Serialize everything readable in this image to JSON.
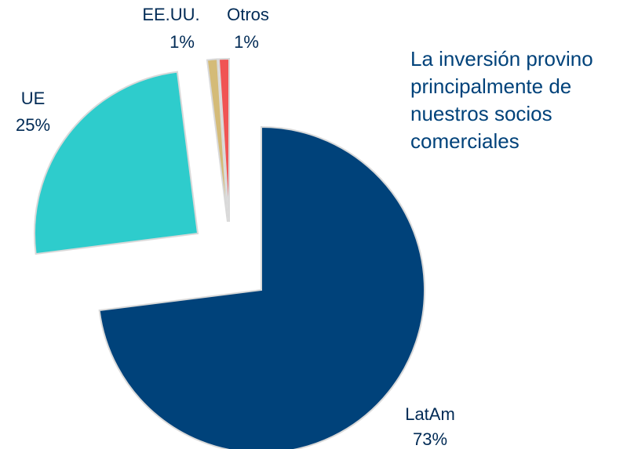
{
  "chart_data": {
    "type": "pie",
    "categories": [
      "LatAm",
      "UE",
      "EE.UU.",
      "Otros"
    ],
    "values": [
      73,
      25,
      1,
      1
    ],
    "value_labels": [
      "73%",
      "25%",
      "1%",
      "1%"
    ],
    "colors": [
      "#00427a",
      "#2ecccc",
      "#d4bb78",
      "#f05454"
    ],
    "annotation": "La inversión provino principalmente de nuestros socios comerciales"
  }
}
